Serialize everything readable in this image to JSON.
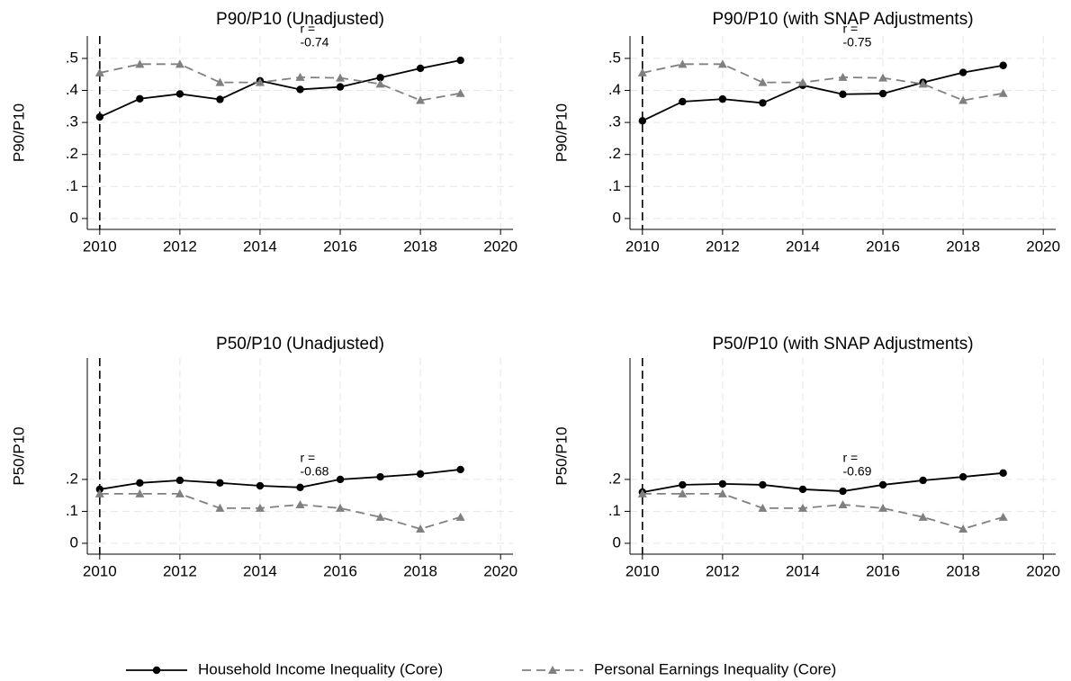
{
  "chart_data": [
    {
      "type": "line",
      "title": "P90/P10 (Unadjusted)",
      "y_label": "P90/P10",
      "x": [
        2010,
        2011,
        2012,
        2013,
        2014,
        2015,
        2016,
        2017,
        2018,
        2019
      ],
      "xlim": [
        2009.69,
        2020.31
      ],
      "ylim": [
        -0.034,
        0.57
      ],
      "xticks": [
        2010,
        2012,
        2014,
        2016,
        2018,
        2020
      ],
      "yticks": [
        0,
        {
          "value": 0.1,
          "label": ".1"
        },
        {
          "value": 0.2,
          "label": ".2"
        },
        {
          "value": 0.3,
          "label": ".3"
        },
        {
          "value": 0.4,
          "label": ".4"
        },
        {
          "value": 0.5,
          "label": ".5"
        }
      ],
      "grid": true,
      "vline": 2010,
      "annotation": [
        "r =",
        "-0.74"
      ],
      "series": [
        {
          "values": [
            0.317,
            0.374,
            0.389,
            0.372,
            0.43,
            0.403,
            0.411,
            0.44,
            0.469,
            0.494
          ]
        },
        {
          "values": [
            0.455,
            0.482,
            0.482,
            0.425,
            0.425,
            0.441,
            0.439,
            0.42,
            0.369,
            0.391
          ]
        }
      ]
    },
    {
      "type": "line",
      "title": "P90/P10 (with SNAP Adjustments)",
      "y_label": "P90/P10",
      "x": [
        2010,
        2011,
        2012,
        2013,
        2014,
        2015,
        2016,
        2017,
        2018,
        2019
      ],
      "xlim": [
        2009.69,
        2020.31
      ],
      "ylim": [
        -0.034,
        0.57
      ],
      "xticks": [
        2010,
        2012,
        2014,
        2016,
        2018,
        2020
      ],
      "yticks": [
        0,
        {
          "value": 0.1,
          "label": ".1"
        },
        {
          "value": 0.2,
          "label": ".2"
        },
        {
          "value": 0.3,
          "label": ".3"
        },
        {
          "value": 0.4,
          "label": ".4"
        },
        {
          "value": 0.5,
          "label": ".5"
        }
      ],
      "grid": true,
      "vline": 2010,
      "annotation": [
        "r =",
        "-0.75"
      ],
      "series": [
        {
          "values": [
            0.305,
            0.365,
            0.373,
            0.361,
            0.416,
            0.388,
            0.39,
            0.425,
            0.456,
            0.478
          ]
        },
        {
          "values": [
            0.455,
            0.482,
            0.482,
            0.425,
            0.425,
            0.441,
            0.439,
            0.42,
            0.369,
            0.391
          ]
        }
      ]
    },
    {
      "type": "line",
      "title": "P50/P10 (Unadjusted)",
      "y_label": "P50/P10",
      "x": [
        2010,
        2011,
        2012,
        2013,
        2014,
        2015,
        2016,
        2017,
        2018,
        2019
      ],
      "xlim": [
        2009.69,
        2020.31
      ],
      "ylim": [
        -0.034,
        0.58
      ],
      "xticks": [
        2010,
        2012,
        2014,
        2016,
        2018,
        2020
      ],
      "yticks": [
        0,
        {
          "value": 0.1,
          "label": ".1"
        },
        {
          "value": 0.2,
          "label": ".2"
        }
      ],
      "grid": true,
      "vline": 2010,
      "annotation": [
        "r =",
        "-0.68"
      ],
      "series": [
        {
          "values": [
            0.169,
            0.189,
            0.197,
            0.189,
            0.18,
            0.175,
            0.2,
            0.208,
            0.217,
            0.231
          ]
        },
        {
          "values": [
            0.155,
            0.155,
            0.155,
            0.11,
            0.11,
            0.121,
            0.11,
            0.082,
            0.045,
            0.082
          ]
        }
      ]
    },
    {
      "type": "line",
      "title": "P50/P10 (with SNAP Adjustments)",
      "y_label": "P50/P10",
      "x": [
        2010,
        2011,
        2012,
        2013,
        2014,
        2015,
        2016,
        2017,
        2018,
        2019
      ],
      "xlim": [
        2009.69,
        2020.31
      ],
      "ylim": [
        -0.034,
        0.58
      ],
      "xticks": [
        2010,
        2012,
        2014,
        2016,
        2018,
        2020
      ],
      "yticks": [
        0,
        {
          "value": 0.1,
          "label": ".1"
        },
        {
          "value": 0.2,
          "label": ".2"
        }
      ],
      "grid": true,
      "vline": 2010,
      "annotation": [
        "r =",
        "-0.69"
      ],
      "series": [
        {
          "values": [
            0.16,
            0.183,
            0.186,
            0.183,
            0.169,
            0.163,
            0.183,
            0.197,
            0.208,
            0.22
          ]
        },
        {
          "values": [
            0.155,
            0.155,
            0.155,
            0.11,
            0.11,
            0.121,
            0.11,
            0.082,
            0.045,
            0.082
          ]
        }
      ]
    }
  ],
  "legend": [
    {
      "name": "Household Income Inequality (Core)",
      "color": "#000000",
      "marker": "circle",
      "dash": false
    },
    {
      "name": "Personal Earnings Inequality (Core)",
      "color": "#808080",
      "marker": "triangle",
      "dash": true
    }
  ]
}
